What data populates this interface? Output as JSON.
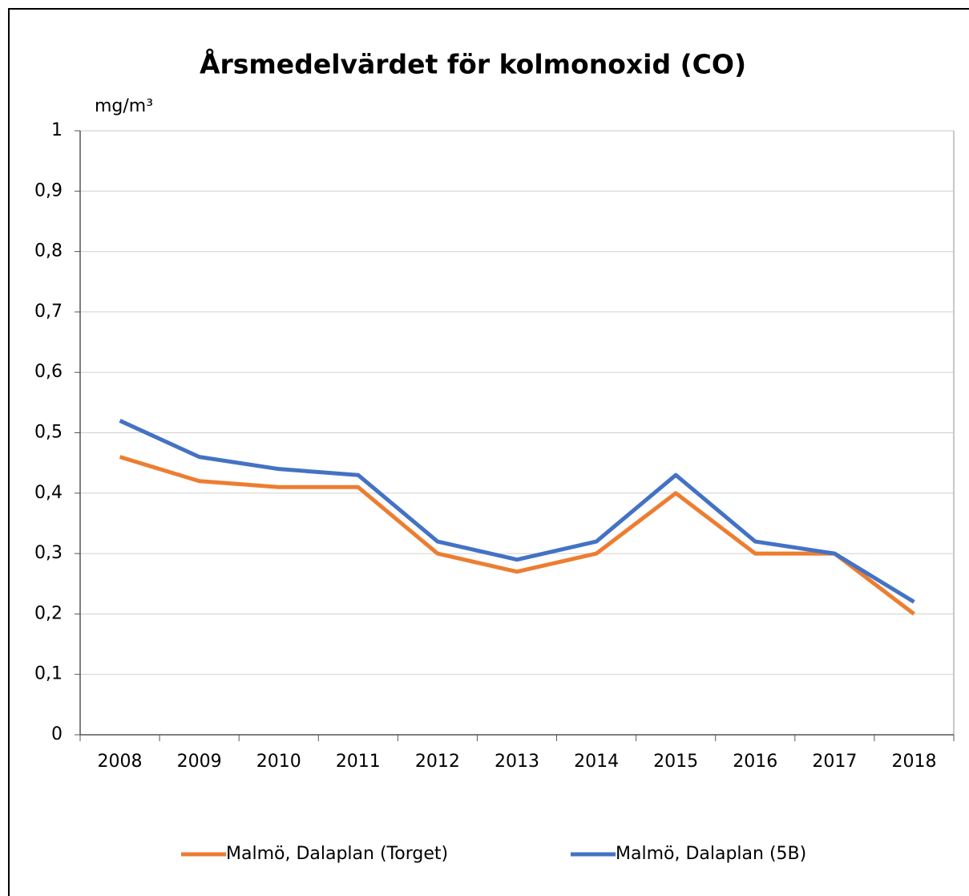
{
  "chart_data": {
    "type": "line",
    "title": "Årsmedelvärdet för kolmonoxid (CO)",
    "y_label": "mg/m³",
    "categories": [
      "2008",
      "2009",
      "2010",
      "2011",
      "2012",
      "2013",
      "2014",
      "2015",
      "2016",
      "2017",
      "2018"
    ],
    "series": [
      {
        "name": "Malmö, Dalaplan (Torget)",
        "color": "#ed7d31",
        "values": [
          0.46,
          0.42,
          0.41,
          0.41,
          0.3,
          0.27,
          0.3,
          0.4,
          0.3,
          0.3,
          0.2
        ]
      },
      {
        "name": "Malmö, Dalaplan (5B)",
        "color": "#4472c4",
        "values": [
          0.52,
          0.46,
          0.44,
          0.43,
          0.32,
          0.29,
          0.32,
          0.43,
          0.32,
          0.3,
          0.22
        ]
      }
    ],
    "ylim": [
      0,
      1
    ],
    "yticks": [
      0,
      {
        "value": 0.1,
        "label": "0,1"
      },
      {
        "value": 0.2,
        "label": "0,2"
      },
      {
        "value": 0.3,
        "label": "0,3"
      },
      {
        "value": 0.4,
        "label": "0,4"
      },
      {
        "value": 0.5,
        "label": "0,5"
      },
      {
        "value": 0.6,
        "label": "0,6"
      },
      {
        "value": 0.7,
        "label": "0,7"
      },
      {
        "value": 0.8,
        "label": "0,8"
      },
      {
        "value": 0.9,
        "label": "0,9"
      },
      1
    ],
    "grid": true
  }
}
